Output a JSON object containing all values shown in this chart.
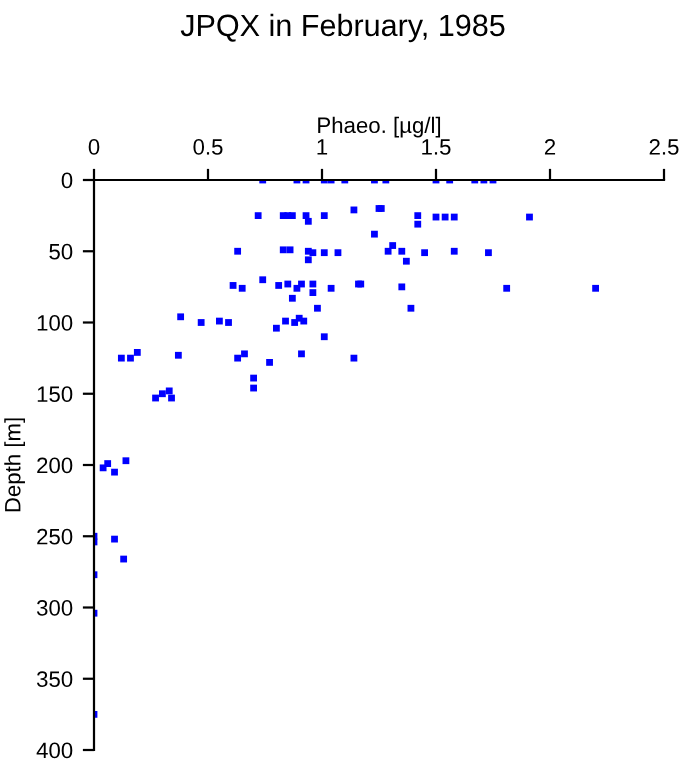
{
  "chart_data": {
    "type": "scatter",
    "title": "JPQX in February, 1985",
    "xlabel": "Phaeo. [µg/l]",
    "ylabel": "Depth [m]",
    "xlim": [
      0,
      2.5
    ],
    "xticks": [
      0,
      0.5,
      1,
      1.5,
      2,
      2.5
    ],
    "ylim": [
      400,
      0
    ],
    "yticks": [
      0,
      50,
      100,
      150,
      200,
      250,
      300,
      350,
      400
    ],
    "marker": "square",
    "grid": false,
    "legend": false,
    "series": [
      {
        "color": "#0000ff",
        "x": [
          0.74,
          0.89,
          0.93,
          1.01,
          1.04,
          1.1,
          1.23,
          1.28,
          1.5,
          1.56,
          1.67,
          1.71,
          1.75,
          0.72,
          0.83,
          0.85,
          0.87,
          0.93,
          0.94,
          1.01,
          1.14,
          1.25,
          1.26,
          1.42,
          1.42,
          1.5,
          1.54,
          1.58,
          1.91,
          1.23,
          1.31,
          1.29,
          1.35,
          1.37,
          1.45,
          1.58,
          1.73,
          1.17,
          1.35,
          1.81,
          2.2,
          1.39,
          0.63,
          0.83,
          0.86,
          0.94,
          0.96,
          1.01,
          1.07,
          0.94,
          0.61,
          0.65,
          0.74,
          0.81,
          0.85,
          0.89,
          0.91,
          0.96,
          0.96,
          1.04,
          1.16,
          0.87,
          0.98,
          0.38,
          0.47,
          0.55,
          0.59,
          0.8,
          0.84,
          0.88,
          0.9,
          0.92,
          1.01,
          0.91,
          1.14,
          0.12,
          0.16,
          0.19,
          0.37,
          0.63,
          0.66,
          0.77,
          0.7,
          0.7,
          0.27,
          0.3,
          0.33,
          0.34,
          0.04,
          0.06,
          0.09,
          0.14,
          0,
          0,
          0.09,
          0.13,
          0,
          0,
          0
        ],
        "values": [
          0,
          0,
          0,
          0,
          0,
          0,
          0,
          0,
          0,
          0,
          0,
          0,
          0,
          25,
          25,
          25,
          25,
          25,
          29,
          25,
          21,
          20,
          20,
          25,
          31,
          26,
          26,
          26,
          26,
          38,
          46,
          50,
          50,
          57,
          51,
          50,
          51,
          73,
          75,
          76,
          76,
          90,
          50,
          49,
          49,
          50,
          51,
          51,
          51,
          56,
          74,
          76,
          70,
          74,
          73,
          76,
          73,
          73,
          79,
          76,
          73,
          83,
          90,
          96,
          100,
          99,
          100,
          104,
          99,
          100,
          97,
          99,
          110,
          122,
          125,
          125,
          125,
          121,
          123,
          125,
          122,
          128,
          139,
          146,
          153,
          150,
          148,
          153,
          202,
          199,
          205,
          197,
          250,
          254,
          252,
          266,
          277,
          304,
          375
        ]
      }
    ]
  }
}
